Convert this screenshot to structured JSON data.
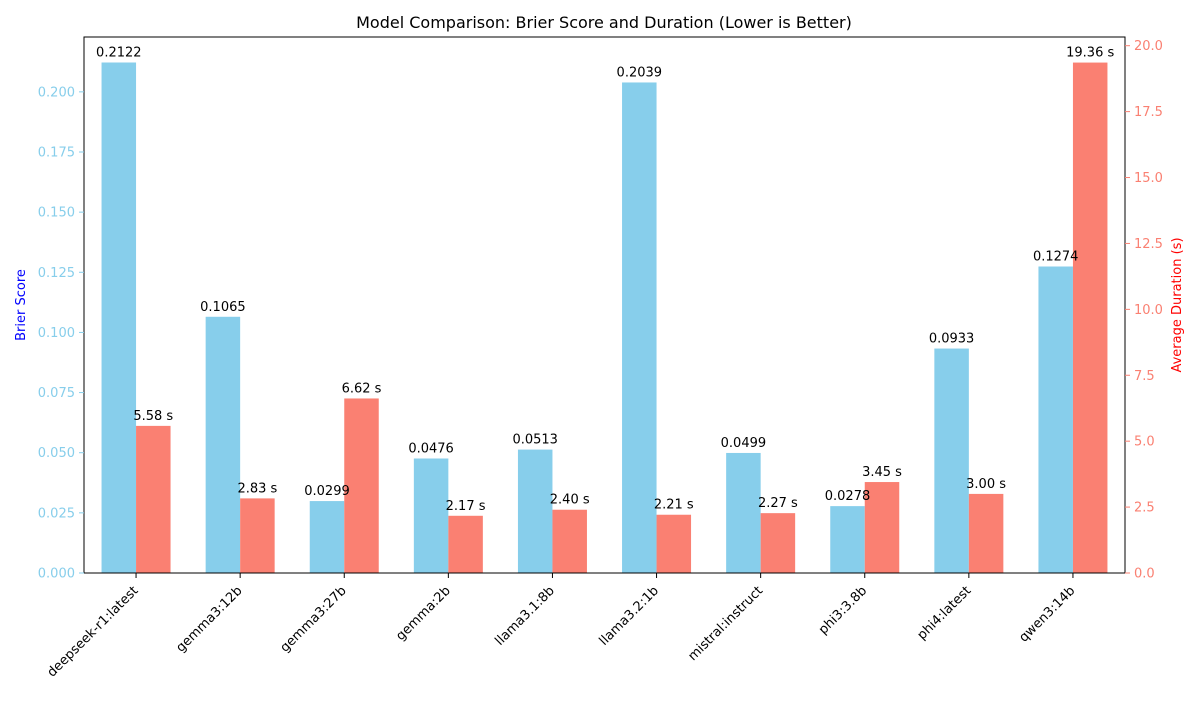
{
  "chart_data": {
    "type": "bar",
    "title": "Model Comparison: Brier Score and Duration (Lower is Better)",
    "categories": [
      "deepseek-r1:latest",
      "gemma3:12b",
      "gemma3:27b",
      "gemma:2b",
      "llama3.1:8b",
      "llama3.2:1b",
      "mistral:instruct",
      "phi3:3.8b",
      "phi4:latest",
      "qwen3:14b"
    ],
    "series": [
      {
        "axis": "left",
        "color": "#87CEEB",
        "values": [
          0.2122,
          0.1065,
          0.0299,
          0.0476,
          0.0513,
          0.2039,
          0.0499,
          0.0278,
          0.0933,
          0.1274
        ],
        "labels": [
          "0.2122",
          "0.1065",
          "0.0299",
          "0.0476",
          "0.0513",
          "0.2039",
          "0.0499",
          "0.0278",
          "0.0933",
          "0.1274"
        ]
      },
      {
        "axis": "right",
        "color": "#FA8072",
        "values": [
          5.58,
          2.83,
          6.62,
          2.17,
          2.4,
          2.21,
          2.27,
          3.45,
          3.0,
          19.36
        ],
        "labels": [
          "5.58 s",
          "2.83 s",
          "6.62 s",
          "2.17 s",
          "2.40 s",
          "2.21 s",
          "2.27 s",
          "3.45 s",
          "3.00 s",
          "19.36 s"
        ]
      }
    ],
    "y_left": {
      "label": "Brier Score",
      "label_color": "#0000FF",
      "tick_color": "#87CEEB",
      "ylim": [
        0,
        0.2228
      ],
      "ticks": [
        0.0,
        0.025,
        0.05,
        0.075,
        0.1,
        0.125,
        0.15,
        0.175,
        0.2
      ],
      "tick_labels": [
        "0.000",
        "0.025",
        "0.050",
        "0.075",
        "0.100",
        "0.125",
        "0.150",
        "0.175",
        "0.200"
      ]
    },
    "y_right": {
      "label": "Average Duration (s)",
      "label_color": "#FF0000",
      "tick_color": "#FA8072",
      "ylim": [
        0,
        20.33
      ],
      "ticks": [
        0.0,
        2.5,
        5.0,
        7.5,
        10.0,
        12.5,
        15.0,
        17.5,
        20.0
      ],
      "tick_labels": [
        "0.0",
        "2.5",
        "5.0",
        "7.5",
        "10.0",
        "12.5",
        "15.0",
        "17.5",
        "20.0"
      ]
    },
    "grid": false,
    "legend": "none"
  }
}
